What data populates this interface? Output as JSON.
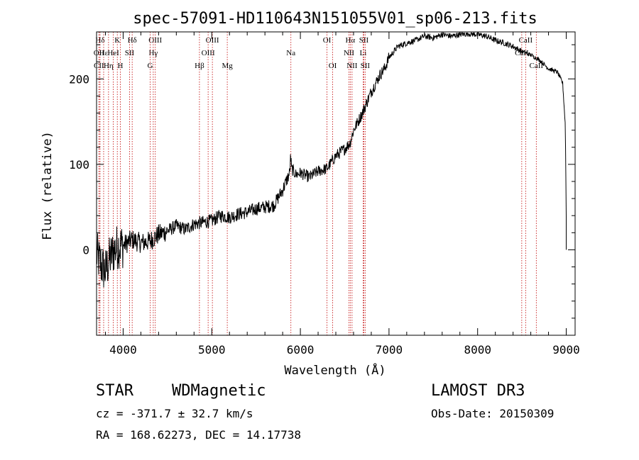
{
  "colors": {
    "line": "#000000",
    "marker": "#c00000",
    "background": "#ffffff"
  },
  "chart_data": {
    "type": "line",
    "title": "spec-57091-HD110643N151055V01_sp06-213.fits",
    "xlabel": "Wavelength (Å)",
    "ylabel": "Flux (relative)",
    "xlim": [
      3700,
      9100
    ],
    "ylim": [
      -100,
      255
    ],
    "xticks": [
      4000,
      5000,
      6000,
      7000,
      8000,
      9000
    ],
    "yticks": [
      0,
      100,
      200
    ],
    "spectrum_anchor_points": {
      "x": [
        3700,
        3760,
        3800,
        3850,
        3900,
        3950,
        4000,
        4100,
        4200,
        4300,
        4400,
        4500,
        4600,
        4700,
        4800,
        4900,
        5000,
        5100,
        5200,
        5300,
        5400,
        5500,
        5600,
        5700,
        5800,
        5880,
        5890,
        5900,
        5950,
        6000,
        6100,
        6200,
        6300,
        6400,
        6500,
        6560,
        6600,
        6700,
        6800,
        6900,
        6950,
        7000,
        7100,
        7200,
        7300,
        7400,
        7500,
        7600,
        7700,
        7800,
        7900,
        8000,
        8100,
        8200,
        8300,
        8400,
        8500,
        8600,
        8700,
        8800,
        8900,
        8960,
        8990,
        9000,
        9010
      ],
      "y": [
        -5,
        -20,
        -25,
        -10,
        0,
        5,
        5,
        12,
        8,
        10,
        18,
        22,
        28,
        24,
        30,
        32,
        34,
        40,
        38,
        42,
        44,
        48,
        50,
        52,
        70,
        90,
        110,
        95,
        88,
        90,
        85,
        92,
        95,
        110,
        118,
        125,
        140,
        160,
        185,
        205,
        212,
        225,
        238,
        242,
        245,
        250,
        248,
        252,
        250,
        252,
        253,
        252,
        250,
        245,
        242,
        238,
        232,
        228,
        222,
        212,
        208,
        195,
        145,
        40,
        0
      ]
    },
    "line_markers": [
      {
        "label": "Hδ",
        "x": 3740,
        "row": 0
      },
      {
        "label": "OII",
        "x": 3727,
        "row": 1
      },
      {
        "label": "CII",
        "x": 3727,
        "row": 2
      },
      {
        "label": "Hε",
        "x": 3780,
        "row": 1
      },
      {
        "label": "Hη",
        "x": 3835,
        "row": 2
      },
      {
        "label": "K",
        "x": 3934,
        "row": 0
      },
      {
        "label": "HeI",
        "x": 3889,
        "row": 1
      },
      {
        "label": "H",
        "x": 3968,
        "row": 2
      },
      {
        "label": "SII",
        "x": 4072,
        "row": 1
      },
      {
        "label": "Hδ",
        "x": 4102,
        "row": 0
      },
      {
        "label": "OIII",
        "x": 4363,
        "row": 0
      },
      {
        "label": "Hγ",
        "x": 4340,
        "row": 1
      },
      {
        "label": "G",
        "x": 4305,
        "row": 2
      },
      {
        "label": "Hβ",
        "x": 4861,
        "row": 2
      },
      {
        "label": "OIII",
        "x": 5007,
        "row": 0
      },
      {
        "label": "OIII",
        "x": 4959,
        "row": 1
      },
      {
        "label": "Mg",
        "x": 5175,
        "row": 2
      },
      {
        "label": "Na",
        "x": 5893,
        "row": 1
      },
      {
        "label": "OI",
        "x": 6300,
        "row": 0
      },
      {
        "label": "OI",
        "x": 6364,
        "row": 2
      },
      {
        "label": "Hα",
        "x": 6563,
        "row": 0
      },
      {
        "label": "NII",
        "x": 6548,
        "row": 1
      },
      {
        "label": "NII",
        "x": 6583,
        "row": 2
      },
      {
        "label": "SII",
        "x": 6716,
        "row": 0
      },
      {
        "label": "Li",
        "x": 6708,
        "row": 1
      },
      {
        "label": "SII",
        "x": 6731,
        "row": 2
      },
      {
        "label": "CaII",
        "x": 8542,
        "row": 0
      },
      {
        "label": "CaII",
        "x": 8498,
        "row": 1
      },
      {
        "label": "CaII",
        "x": 8662,
        "row": 2
      }
    ]
  },
  "info": {
    "object_class": "STAR",
    "subclass": "WDMagnetic",
    "survey": "LAMOST DR3",
    "redshift": "cz = -371.7 ± 32.7 km/s",
    "obs_date": "Obs-Date: 20150309",
    "coords": "RA = 168.62273, DEC =  14.17738"
  }
}
